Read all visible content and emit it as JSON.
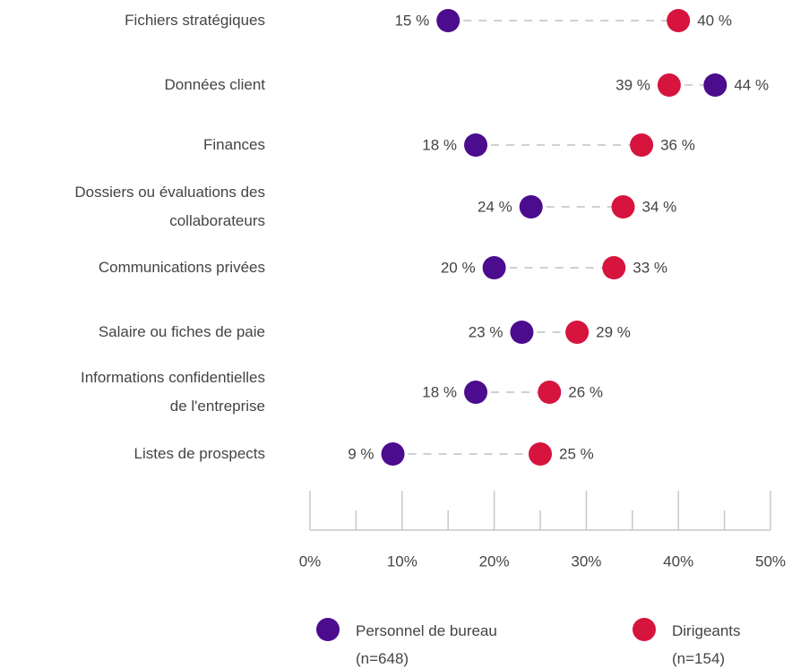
{
  "chart_data": {
    "type": "dumbbell",
    "categories": [
      "Fichiers stratégiques",
      "Données client",
      "Finances",
      "Dossiers ou évaluations des\ncollaborateurs",
      "Communications privées",
      "Salaire ou fiches de paie",
      "Informations confidentielles\nde l'entreprise",
      "Listes de prospects"
    ],
    "series": [
      {
        "name": "Personnel de bureau\n(n=648)",
        "color": "#4b0c8e",
        "values": [
          15,
          44,
          18,
          24,
          20,
          23,
          18,
          9
        ],
        "value_labels": [
          "15 %",
          "44 %",
          "18 %",
          "24 %",
          "20 %",
          "23 %",
          "18 %",
          "9 %"
        ]
      },
      {
        "name": "Dirigeants\n(n=154)",
        "color": "#d6143e",
        "values": [
          40,
          39,
          36,
          34,
          33,
          29,
          26,
          25
        ],
        "value_labels": [
          "40 %",
          "39 %",
          "36 %",
          "34 %",
          "33 %",
          "29 %",
          "26 %",
          "25 %"
        ]
      }
    ],
    "xlim": [
      0,
      50
    ],
    "xticks": [
      {
        "value": 0,
        "label": "0%"
      },
      {
        "value": 10,
        "label": "10%"
      },
      {
        "value": 20,
        "label": "20%"
      },
      {
        "value": 30,
        "label": "30%"
      },
      {
        "value": 40,
        "label": "40%"
      },
      {
        "value": 50,
        "label": "50%"
      }
    ],
    "xminor_ticks": [
      5,
      15,
      25,
      35,
      45
    ],
    "connector_color": "#d0d0d0"
  }
}
